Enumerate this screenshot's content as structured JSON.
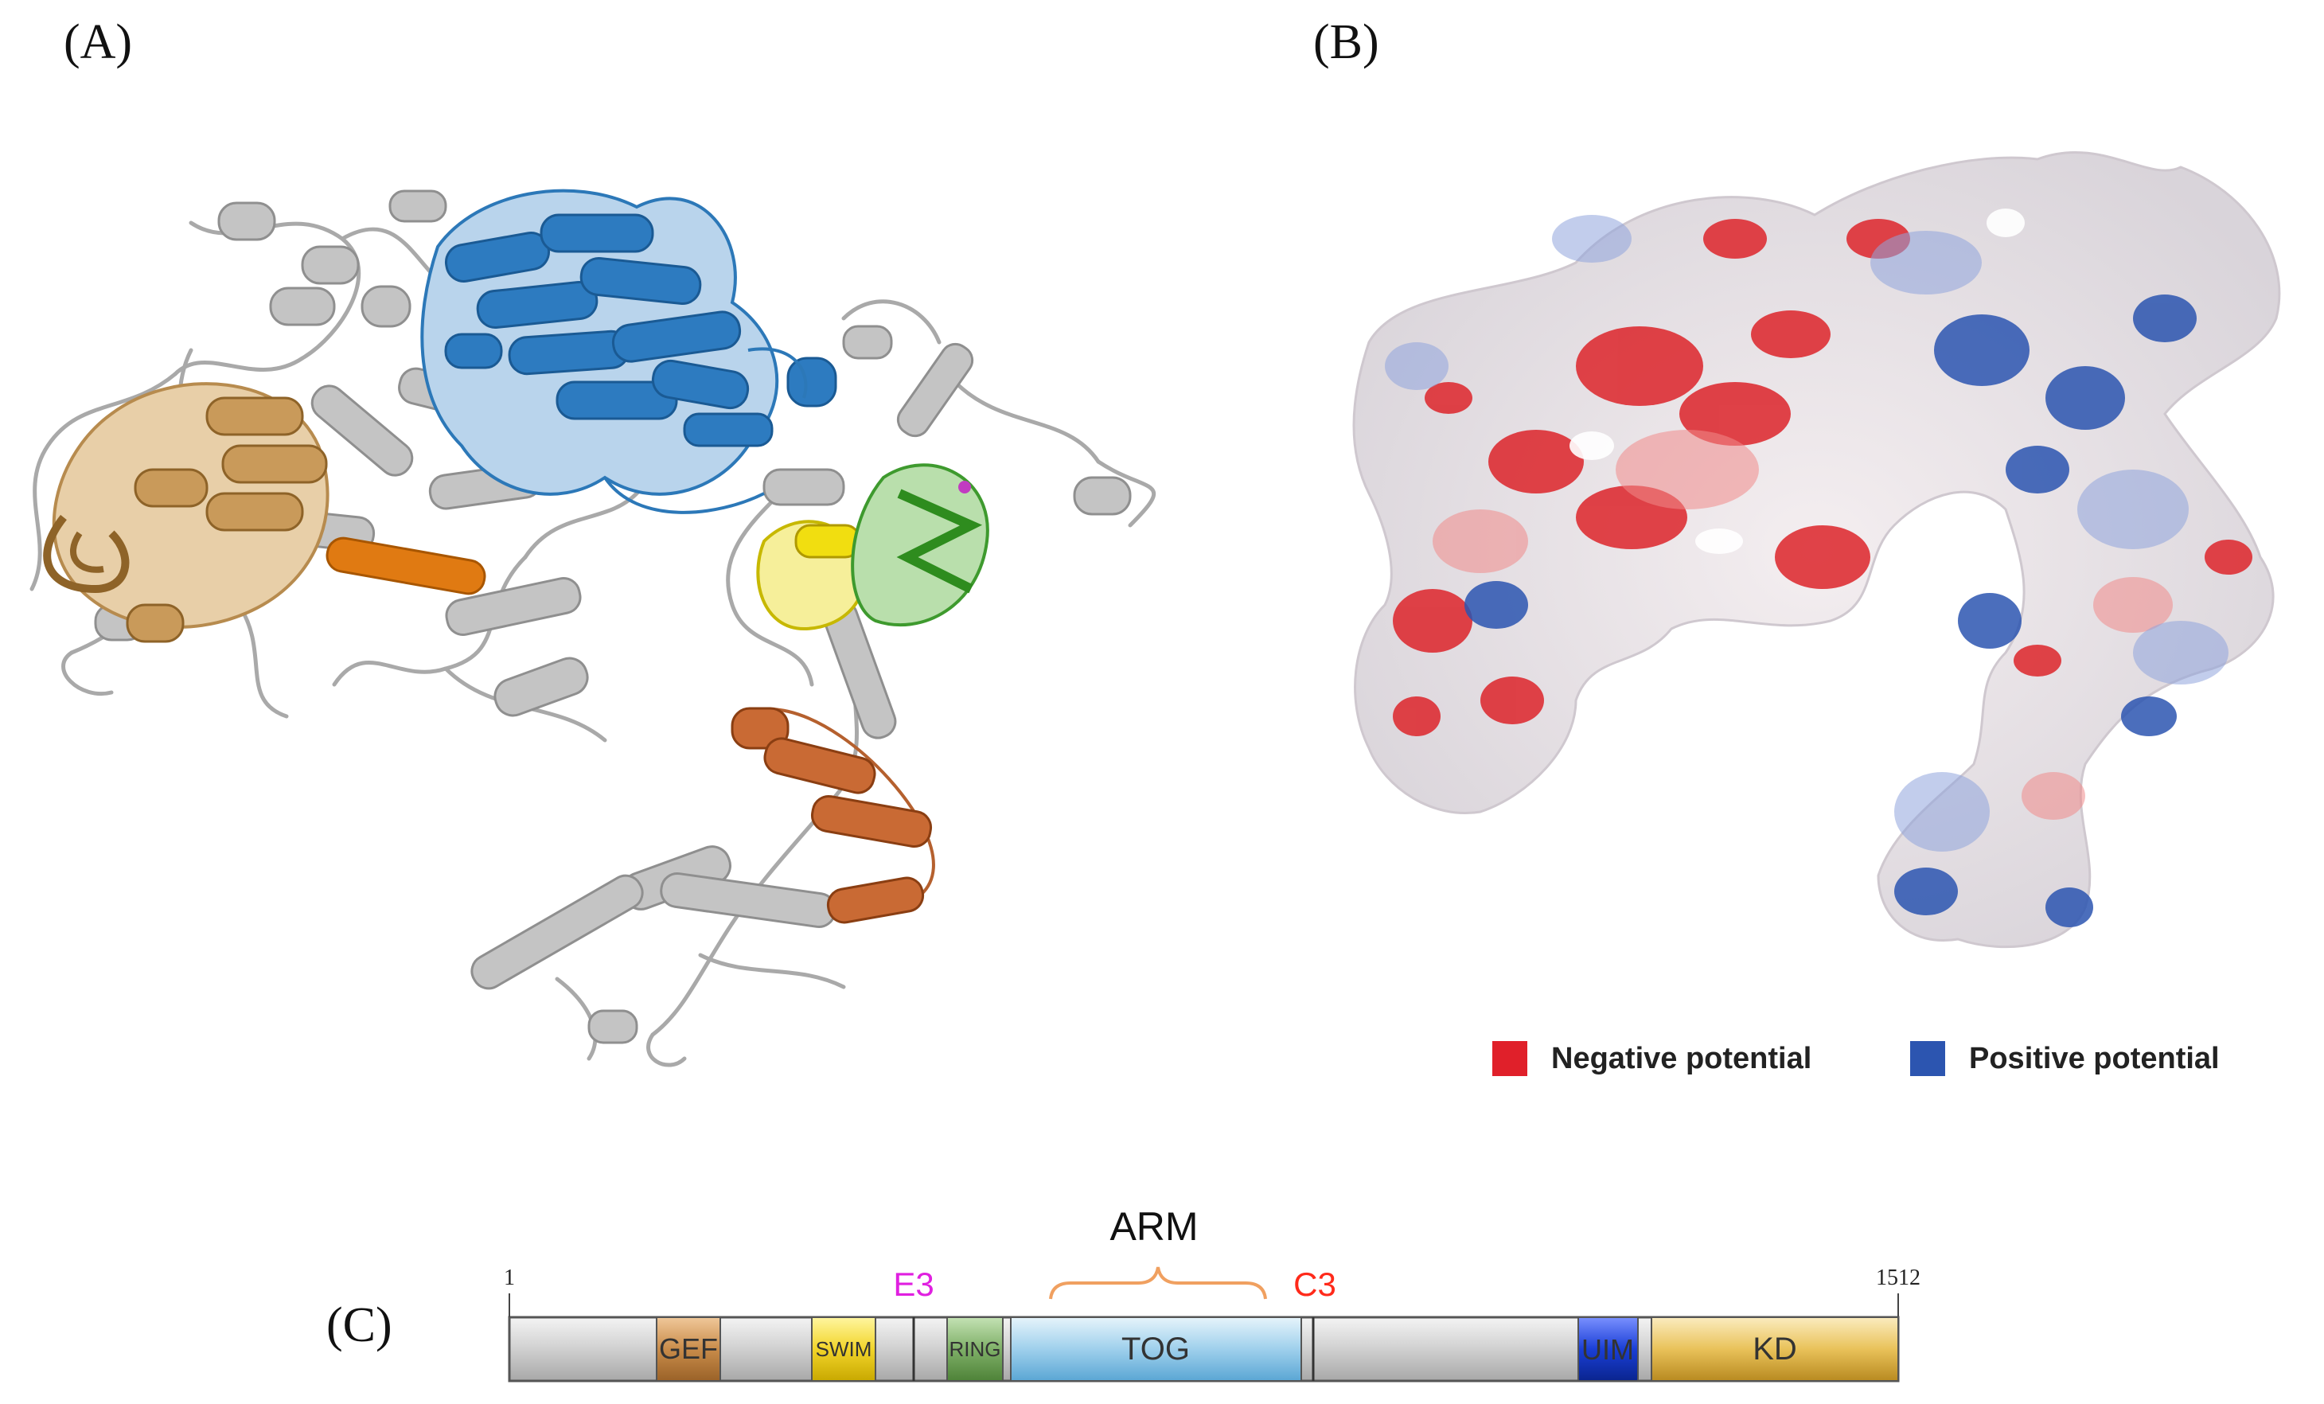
{
  "panels": {
    "a": "(A)",
    "b": "(B)",
    "c": "(C)"
  },
  "legend": {
    "negative": {
      "label": "Negative potential",
      "color": "#e0202a"
    },
    "positive": {
      "label": "Positive potential",
      "color": "#2c55b0"
    }
  },
  "domain_map": {
    "start": "1",
    "end": "1512",
    "arm_label": "ARM",
    "e3_label": "E3",
    "c3_label": "C3",
    "domains": {
      "gef": "GEF",
      "swim": "SWIM",
      "ring": "RING",
      "tog": "TOG",
      "uim": "UIM",
      "kd": "KD"
    },
    "colors": {
      "gef": "#c98c4a",
      "swim": "#f2d52a",
      "ring": "#7fb068",
      "tog": "#9fd0ec",
      "uim": "#1a3fd6",
      "kd": "#e9c25a",
      "e3": "#e020e0",
      "c3": "#ff2a1a",
      "arm": "#f0a060"
    }
  }
}
